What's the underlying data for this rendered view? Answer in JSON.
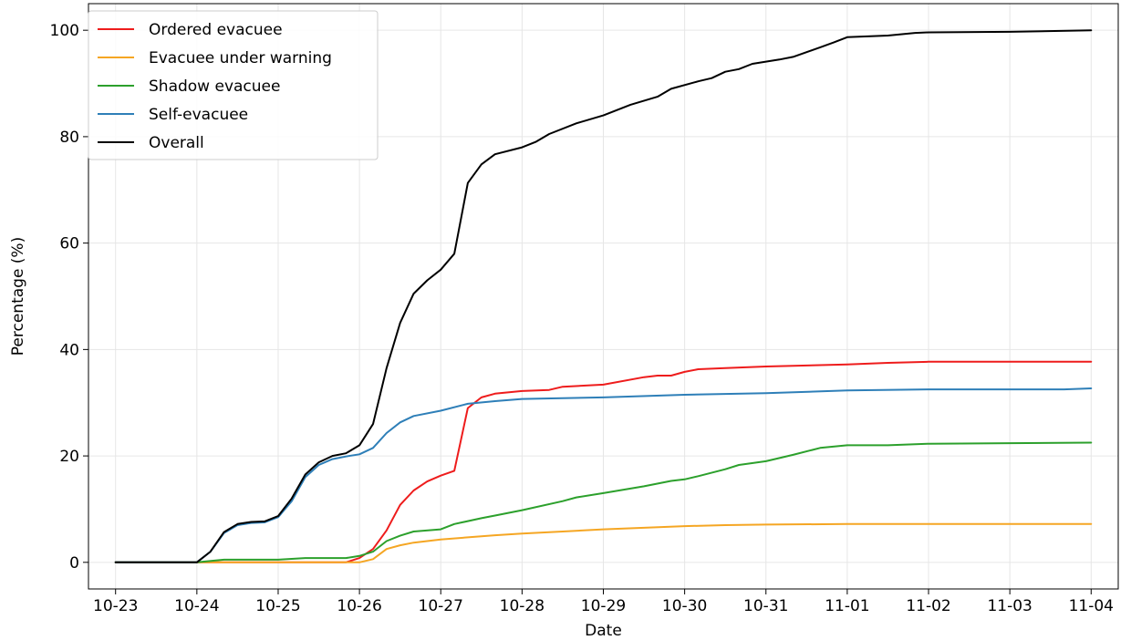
{
  "chart_data": {
    "type": "line",
    "xlabel": "Date",
    "ylabel": "Percentage (%)",
    "xlim": [
      "2024-10-22T16:00",
      "2024-11-04T08:00"
    ],
    "ylim": [
      -5,
      105
    ],
    "grid": true,
    "legend_position": "top-left",
    "x_ticks": [
      {
        "date": "2024-10-23",
        "label": "10-23"
      },
      {
        "date": "2024-10-24",
        "label": "10-24"
      },
      {
        "date": "2024-10-25",
        "label": "10-25"
      },
      {
        "date": "2024-10-26",
        "label": "10-26"
      },
      {
        "date": "2024-10-27",
        "label": "10-27"
      },
      {
        "date": "2024-10-28",
        "label": "10-28"
      },
      {
        "date": "2024-10-29",
        "label": "10-29"
      },
      {
        "date": "2024-10-30",
        "label": "10-30"
      },
      {
        "date": "2024-10-31",
        "label": "10-31"
      },
      {
        "date": "2024-11-01",
        "label": "11-01"
      },
      {
        "date": "2024-11-02",
        "label": "11-02"
      },
      {
        "date": "2024-11-03",
        "label": "11-03"
      },
      {
        "date": "2024-11-04",
        "label": "11-04"
      }
    ],
    "y_ticks": [
      {
        "value": 0,
        "label": "0"
      },
      {
        "value": 20,
        "label": "20"
      },
      {
        "value": 40,
        "label": "40"
      },
      {
        "value": 60,
        "label": "60"
      },
      {
        "value": 80,
        "label": "80"
      },
      {
        "value": 100,
        "label": "100"
      }
    ],
    "series": [
      {
        "name": "Ordered evacuee",
        "color": "#ee1c1c",
        "points": [
          [
            "2024-10-23T00:00",
            0
          ],
          [
            "2024-10-24T00:00",
            0
          ],
          [
            "2024-10-25T00:00",
            0
          ],
          [
            "2024-10-25T20:00",
            0
          ],
          [
            "2024-10-26T00:00",
            0.8
          ],
          [
            "2024-10-26T04:00",
            2.5
          ],
          [
            "2024-10-26T08:00",
            6
          ],
          [
            "2024-10-26T12:00",
            10.8
          ],
          [
            "2024-10-26T16:00",
            13.5
          ],
          [
            "2024-10-26T20:00",
            15.2
          ],
          [
            "2024-10-27T00:00",
            16.3
          ],
          [
            "2024-10-27T04:00",
            17.2
          ],
          [
            "2024-10-27T08:00",
            29
          ],
          [
            "2024-10-27T12:00",
            31
          ],
          [
            "2024-10-27T16:00",
            31.7
          ],
          [
            "2024-10-28T00:00",
            32.2
          ],
          [
            "2024-10-28T08:00",
            32.4
          ],
          [
            "2024-10-28T12:00",
            33
          ],
          [
            "2024-10-29T00:00",
            33.4
          ],
          [
            "2024-10-29T12:00",
            34.8
          ],
          [
            "2024-10-29T16:00",
            35.1
          ],
          [
            "2024-10-29T20:00",
            35.1
          ],
          [
            "2024-10-30T00:00",
            35.8
          ],
          [
            "2024-10-30T04:00",
            36.3
          ],
          [
            "2024-10-30T12:00",
            36.5
          ],
          [
            "2024-10-31T00:00",
            36.8
          ],
          [
            "2024-11-01T00:00",
            37.2
          ],
          [
            "2024-11-01T12:00",
            37.5
          ],
          [
            "2024-11-02T00:00",
            37.7
          ],
          [
            "2024-11-03T00:00",
            37.7
          ],
          [
            "2024-11-04T00:00",
            37.7
          ]
        ]
      },
      {
        "name": "Evacuee under warning",
        "color": "#f5a623",
        "points": [
          [
            "2024-10-23T00:00",
            0
          ],
          [
            "2024-10-24T00:00",
            0
          ],
          [
            "2024-10-25T00:00",
            0
          ],
          [
            "2024-10-26T00:00",
            0
          ],
          [
            "2024-10-26T04:00",
            0.6
          ],
          [
            "2024-10-26T08:00",
            2.5
          ],
          [
            "2024-10-26T12:00",
            3.2
          ],
          [
            "2024-10-26T16:00",
            3.7
          ],
          [
            "2024-10-27T00:00",
            4.3
          ],
          [
            "2024-10-27T08:00",
            4.7
          ],
          [
            "2024-10-27T16:00",
            5.1
          ],
          [
            "2024-10-28T00:00",
            5.4
          ],
          [
            "2024-10-28T12:00",
            5.8
          ],
          [
            "2024-10-29T00:00",
            6.2
          ],
          [
            "2024-10-29T12:00",
            6.5
          ],
          [
            "2024-10-30T00:00",
            6.8
          ],
          [
            "2024-10-30T12:00",
            7
          ],
          [
            "2024-10-31T00:00",
            7.1
          ],
          [
            "2024-11-01T00:00",
            7.2
          ],
          [
            "2024-11-02T00:00",
            7.2
          ],
          [
            "2024-11-03T00:00",
            7.2
          ],
          [
            "2024-11-04T00:00",
            7.2
          ]
        ]
      },
      {
        "name": "Shadow evacuee",
        "color": "#2ca02c",
        "points": [
          [
            "2024-10-23T00:00",
            0
          ],
          [
            "2024-10-24T00:00",
            0
          ],
          [
            "2024-10-24T08:00",
            0.5
          ],
          [
            "2024-10-25T00:00",
            0.5
          ],
          [
            "2024-10-25T08:00",
            0.8
          ],
          [
            "2024-10-25T20:00",
            0.8
          ],
          [
            "2024-10-26T00:00",
            1.2
          ],
          [
            "2024-10-26T04:00",
            2
          ],
          [
            "2024-10-26T08:00",
            4
          ],
          [
            "2024-10-26T12:00",
            5
          ],
          [
            "2024-10-26T16:00",
            5.8
          ],
          [
            "2024-10-27T00:00",
            6.2
          ],
          [
            "2024-10-27T04:00",
            7.2
          ],
          [
            "2024-10-27T12:00",
            8.3
          ],
          [
            "2024-10-27T16:00",
            8.8
          ],
          [
            "2024-10-28T00:00",
            9.8
          ],
          [
            "2024-10-28T12:00",
            11.5
          ],
          [
            "2024-10-28T16:00",
            12.2
          ],
          [
            "2024-10-29T00:00",
            13
          ],
          [
            "2024-10-29T12:00",
            14.3
          ],
          [
            "2024-10-29T20:00",
            15.3
          ],
          [
            "2024-10-30T00:00",
            15.6
          ],
          [
            "2024-10-30T04:00",
            16.2
          ],
          [
            "2024-10-30T12:00",
            17.5
          ],
          [
            "2024-10-30T16:00",
            18.3
          ],
          [
            "2024-10-31T00:00",
            19
          ],
          [
            "2024-10-31T08:00",
            20.2
          ],
          [
            "2024-10-31T16:00",
            21.5
          ],
          [
            "2024-11-01T00:00",
            22
          ],
          [
            "2024-11-01T12:00",
            22
          ],
          [
            "2024-11-02T00:00",
            22.3
          ],
          [
            "2024-11-03T00:00",
            22.4
          ],
          [
            "2024-11-04T00:00",
            22.5
          ]
        ]
      },
      {
        "name": "Self-evacuee",
        "color": "#2e7fb8",
        "points": [
          [
            "2024-10-23T00:00",
            0
          ],
          [
            "2024-10-24T00:00",
            0
          ],
          [
            "2024-10-24T04:00",
            2
          ],
          [
            "2024-10-24T08:00",
            5.5
          ],
          [
            "2024-10-24T12:00",
            7
          ],
          [
            "2024-10-24T16:00",
            7.4
          ],
          [
            "2024-10-24T20:00",
            7.5
          ],
          [
            "2024-10-25T00:00",
            8.5
          ],
          [
            "2024-10-25T04:00",
            11.5
          ],
          [
            "2024-10-25T08:00",
            16
          ],
          [
            "2024-10-25T12:00",
            18.3
          ],
          [
            "2024-10-25T16:00",
            19.4
          ],
          [
            "2024-10-25T20:00",
            19.9
          ],
          [
            "2024-10-26T00:00",
            20.3
          ],
          [
            "2024-10-26T04:00",
            21.5
          ],
          [
            "2024-10-26T08:00",
            24.3
          ],
          [
            "2024-10-26T12:00",
            26.3
          ],
          [
            "2024-10-26T16:00",
            27.5
          ],
          [
            "2024-10-27T00:00",
            28.5
          ],
          [
            "2024-10-27T08:00",
            29.8
          ],
          [
            "2024-10-27T16:00",
            30.3
          ],
          [
            "2024-10-28T00:00",
            30.7
          ],
          [
            "2024-10-29T00:00",
            31
          ],
          [
            "2024-10-30T00:00",
            31.5
          ],
          [
            "2024-10-31T00:00",
            31.8
          ],
          [
            "2024-11-01T00:00",
            32.3
          ],
          [
            "2024-11-02T00:00",
            32.5
          ],
          [
            "2024-11-03T00:00",
            32.5
          ],
          [
            "2024-11-03T16:00",
            32.5
          ],
          [
            "2024-11-04T00:00",
            32.7
          ]
        ]
      },
      {
        "name": "Overall",
        "color": "#000000",
        "points": [
          [
            "2024-10-23T00:00",
            0
          ],
          [
            "2024-10-24T00:00",
            0
          ],
          [
            "2024-10-24T04:00",
            2
          ],
          [
            "2024-10-24T08:00",
            5.7
          ],
          [
            "2024-10-24T12:00",
            7.2
          ],
          [
            "2024-10-24T16:00",
            7.6
          ],
          [
            "2024-10-24T20:00",
            7.7
          ],
          [
            "2024-10-25T00:00",
            8.7
          ],
          [
            "2024-10-25T04:00",
            12
          ],
          [
            "2024-10-25T08:00",
            16.5
          ],
          [
            "2024-10-25T12:00",
            18.8
          ],
          [
            "2024-10-25T16:00",
            20
          ],
          [
            "2024-10-25T20:00",
            20.5
          ],
          [
            "2024-10-26T00:00",
            22
          ],
          [
            "2024-10-26T04:00",
            26
          ],
          [
            "2024-10-26T08:00",
            36.5
          ],
          [
            "2024-10-26T12:00",
            45
          ],
          [
            "2024-10-26T16:00",
            50.5
          ],
          [
            "2024-10-26T20:00",
            53
          ],
          [
            "2024-10-27T00:00",
            55
          ],
          [
            "2024-10-27T04:00",
            58
          ],
          [
            "2024-10-27T08:00",
            71.3
          ],
          [
            "2024-10-27T12:00",
            74.8
          ],
          [
            "2024-10-27T16:00",
            76.7
          ],
          [
            "2024-10-28T00:00",
            78
          ],
          [
            "2024-10-28T04:00",
            79
          ],
          [
            "2024-10-28T08:00",
            80.5
          ],
          [
            "2024-10-28T16:00",
            82.5
          ],
          [
            "2024-10-29T00:00",
            84
          ],
          [
            "2024-10-29T08:00",
            86
          ],
          [
            "2024-10-29T16:00",
            87.5
          ],
          [
            "2024-10-29T20:00",
            89
          ],
          [
            "2024-10-30T04:00",
            90.4
          ],
          [
            "2024-10-30T08:00",
            91
          ],
          [
            "2024-10-30T12:00",
            92.2
          ],
          [
            "2024-10-30T16:00",
            92.7
          ],
          [
            "2024-10-30T20:00",
            93.7
          ],
          [
            "2024-10-31T04:00",
            94.5
          ],
          [
            "2024-10-31T08:00",
            95
          ],
          [
            "2024-10-31T16:00",
            96.8
          ],
          [
            "2024-10-31T20:00",
            97.7
          ],
          [
            "2024-11-01T00:00",
            98.7
          ],
          [
            "2024-11-01T12:00",
            99
          ],
          [
            "2024-11-01T20:00",
            99.5
          ],
          [
            "2024-11-02T00:00",
            99.6
          ],
          [
            "2024-11-03T00:00",
            99.7
          ],
          [
            "2024-11-04T00:00",
            100
          ]
        ]
      }
    ]
  }
}
